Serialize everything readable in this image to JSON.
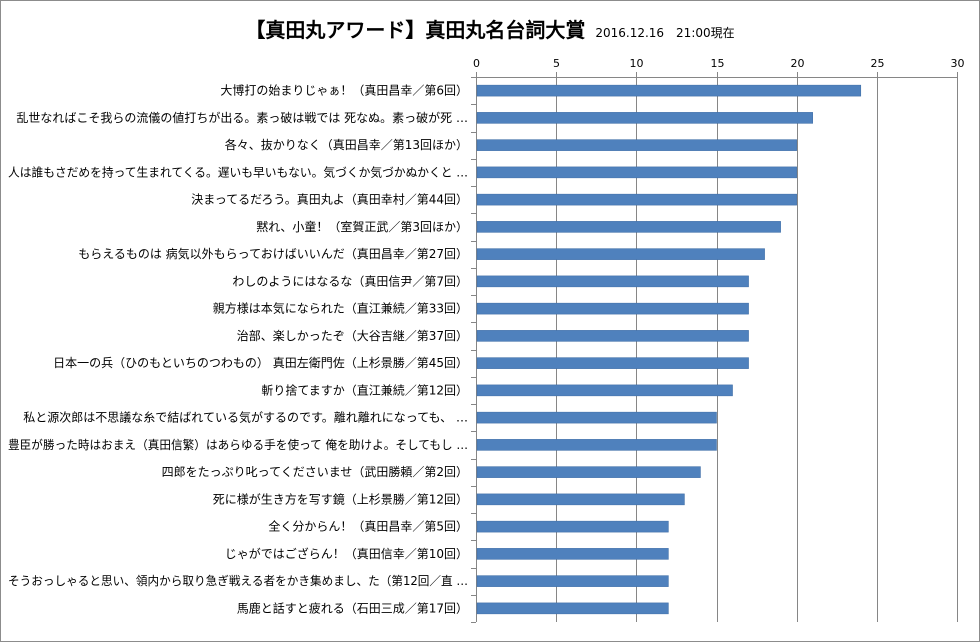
{
  "chart_data": {
    "type": "bar",
    "orientation": "horizontal",
    "title": "【真田丸アワード】真田丸名台詞大賞",
    "subtitle": "2016.12.16　21:00現在",
    "xlim": [
      0,
      30
    ],
    "xticks": [
      "0",
      "5",
      "10",
      "15",
      "20",
      "25",
      "30"
    ],
    "xaxis_position": "top",
    "grid": true,
    "legend": "none",
    "bar_color": "#4f81bd",
    "categories": [
      "大博打の始まりじゃぁ！（真田昌幸／第6回）",
      "乱世なればこそ我らの流儀の値打ちが出る。素っ破は戦では 死なぬ。素っ破が死 …",
      "各々、抜かりなく（真田昌幸／第13回ほか）",
      "人は誰もさだめを持って生まれてくる。遅いも早いもない。気づくか気づかぬかくと …",
      "決まってるだろう。真田丸よ（真田幸村／第44回）",
      "黙れ、小童！（室賀正武／第3回ほか）",
      "もらえるものは 病気以外もらっておけばいいんだ（真田昌幸／第27回）",
      "わしのようにはなるな（真田信尹／第7回）",
      "親方様は本気になられた（直江兼続／第33回）",
      "治部、楽しかったぞ（大谷吉継／第37回）",
      "日本一の兵（ひのもといちのつわもの） 真田左衛門佐（上杉景勝／第45回）",
      "斬り捨てますか（直江兼続／第12回）",
      "私と源次郎は不思議な糸で結ばれている気がするのです。離れ離れになっても、 …",
      "豊臣が勝った時はおまえ（真田信繁）はあらゆる手を使って 俺を助けよ。そしてもし …",
      "四郎をたっぷり叱ってくださいませ（武田勝頼／第2回）",
      "死に様が生き方を写す鏡（上杉景勝／第12回）",
      "全く分からん！（真田昌幸／第5回）",
      "じゃがではござらん！（真田信幸／第10回）",
      "そうおっしゃると思い、領内から取り急ぎ戦える者をかき集めまし、た（第12回／直 …",
      "馬鹿と話すと疲れる（石田三成／第17回）"
    ],
    "values": [
      24,
      21,
      20,
      20,
      20,
      19,
      18,
      17,
      17,
      17,
      17,
      16,
      15,
      15,
      14,
      13,
      12,
      12,
      12,
      12
    ]
  }
}
